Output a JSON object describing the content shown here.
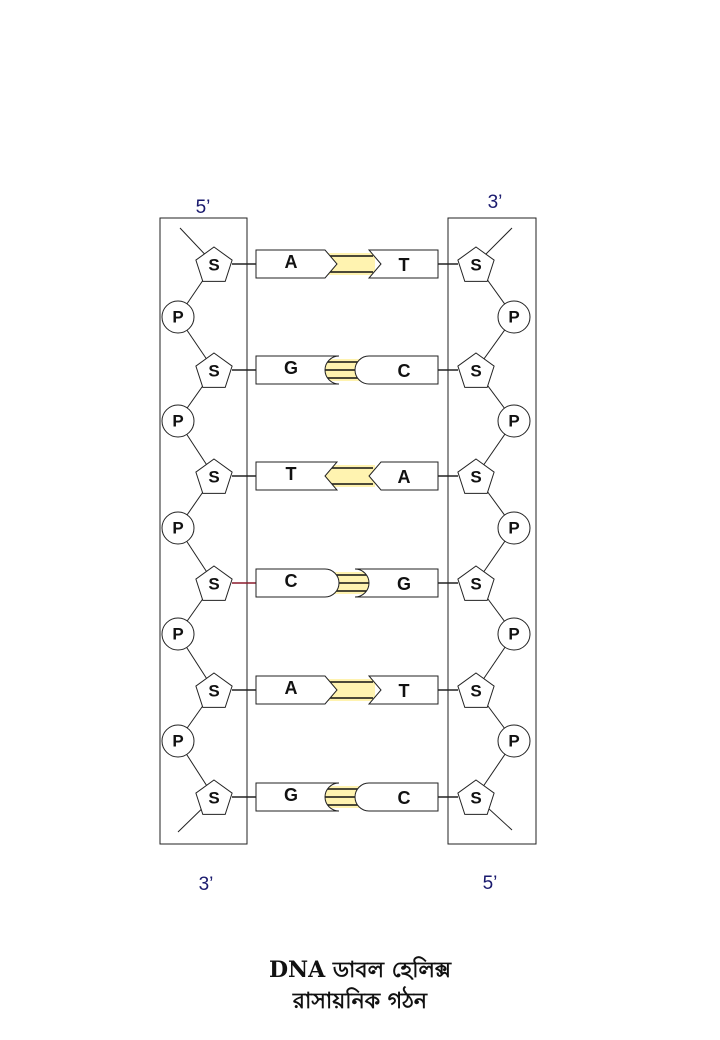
{
  "labels": {
    "left_top": "5’",
    "right_top": "3’",
    "left_bottom": "3’",
    "right_bottom": "5’"
  },
  "sugar_label": "S",
  "phosphate_label": "P",
  "base_pairs": [
    {
      "left": "A",
      "right": "T",
      "bonds": 2
    },
    {
      "left": "G",
      "right": "C",
      "bonds": 3
    },
    {
      "left": "T",
      "right": "A",
      "bonds": 2
    },
    {
      "left": "C",
      "right": "G",
      "bonds": 3
    },
    {
      "left": "A",
      "right": "T",
      "bonds": 2
    },
    {
      "left": "G",
      "right": "C",
      "bonds": 3
    }
  ],
  "caption": {
    "line1": "DNA ডাবল হেলিক্স",
    "line2": "রাসায়নিক গঠন"
  },
  "colors": {
    "stroke": "#222222",
    "end_label": "#1a1a6e",
    "bond_fill": "#fff3b0",
    "highlight_link": "#8b1a2b"
  }
}
